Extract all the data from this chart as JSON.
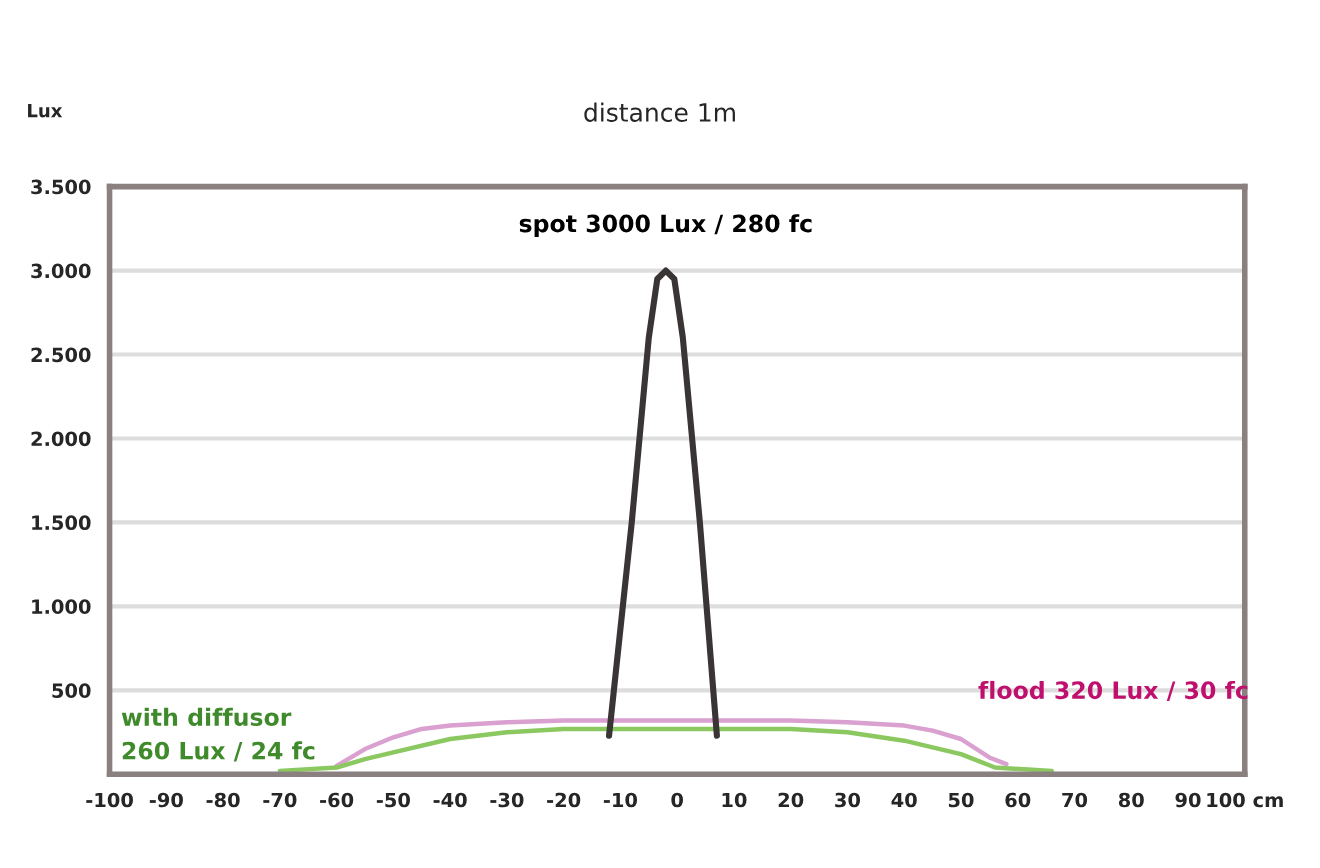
{
  "chart_data": {
    "type": "line",
    "title": "distance 1m",
    "ylabel": "Lux",
    "xlim": [
      -100,
      100
    ],
    "ylim": [
      0,
      3500
    ],
    "xticks": [
      -100,
      -90,
      -80,
      -70,
      -60,
      -50,
      -40,
      -30,
      -20,
      -10,
      0,
      10,
      20,
      30,
      40,
      50,
      60,
      70,
      80,
      90,
      {
        "value": 100,
        "label": "100 cm"
      }
    ],
    "yticks": [
      {
        "value": 500,
        "label": "500"
      },
      {
        "value": 1000,
        "label": "1.000"
      },
      {
        "value": 1500,
        "label": "1.500"
      },
      {
        "value": 2000,
        "label": "2.000"
      },
      {
        "value": 2500,
        "label": "2.500"
      },
      {
        "value": 3000,
        "label": "3.000"
      },
      {
        "value": 3500,
        "label": "3.500"
      }
    ],
    "grid": "y",
    "legend": false,
    "marker": "none",
    "line_style": "solid",
    "series": [
      {
        "name": "flood 320 Lux / 30 fc",
        "color": "#d9a0d0",
        "x": [
          -60,
          -55,
          -50,
          -45,
          -40,
          -30,
          -20,
          0,
          20,
          30,
          40,
          45,
          50,
          55,
          58
        ],
        "values": [
          50,
          150,
          220,
          270,
          290,
          310,
          320,
          320,
          320,
          310,
          290,
          260,
          210,
          100,
          60
        ]
      },
      {
        "name": "with diffusor\n260 Lux / 24 fc",
        "color": "#8cc860",
        "x": [
          -70,
          -60,
          -55,
          -50,
          -40,
          -30,
          -20,
          0,
          20,
          30,
          40,
          50,
          56,
          66
        ],
        "values": [
          20,
          40,
          90,
          130,
          210,
          250,
          270,
          270,
          270,
          250,
          200,
          120,
          40,
          20
        ]
      },
      {
        "name": "spot 3000 Lux / 280 fc",
        "color": "#3a3535",
        "x": [
          -12,
          -8,
          -5,
          -3.5,
          -2,
          -0.5,
          1,
          4,
          7
        ],
        "values": [
          230,
          1500,
          2600,
          2950,
          3000,
          2950,
          2600,
          1500,
          230
        ]
      }
    ]
  }
}
